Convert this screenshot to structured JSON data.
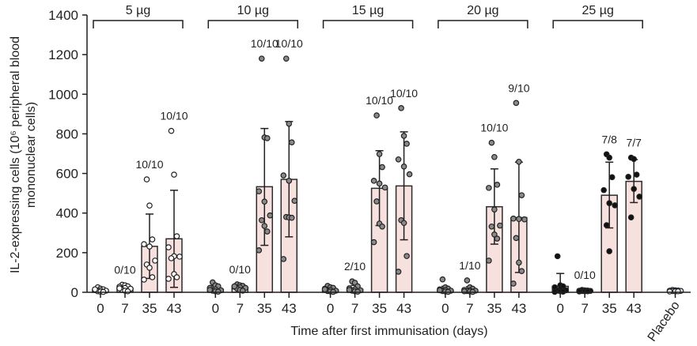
{
  "chart_data": {
    "type": "bar",
    "title": "",
    "xlabel": "Time after first immunisation (days)",
    "ylabel_line1": "IL-2-expressing cells (10⁶ peripheral blood",
    "ylabel_line2": "mononuclear cells)",
    "ylim": [
      0,
      1400
    ],
    "yticks": [
      "0",
      "200",
      "400",
      "600",
      "800",
      "1000",
      "1200",
      "1400"
    ],
    "grid": false,
    "colors": {
      "bar_fill": "#f7e1df",
      "bar_stroke": "#2b2b2b",
      "axis": "#231f20"
    },
    "groups": [
      {
        "label": "5 µg",
        "marker_fill": "#ffffff",
        "timepoints": [
          {
            "day": "0",
            "mean": 10,
            "sd_low": 0,
            "sd_high": 20,
            "responders": "",
            "points": [
              25,
              18,
              15,
              12,
              10,
              8,
              5,
              3,
              2,
              15
            ]
          },
          {
            "day": "7",
            "mean": 20,
            "sd_low": 5,
            "sd_high": 35,
            "responders": "0/10",
            "points": [
              38,
              35,
              30,
              28,
              22,
              18,
              12,
              8,
              5,
              20
            ]
          },
          {
            "day": "35",
            "mean": 232,
            "sd_low": 70,
            "sd_high": 395,
            "responders": "10/10",
            "points": [
              570,
              438,
              267,
              243,
              231,
              160,
              140,
              124,
              76,
              64
            ]
          },
          {
            "day": "43",
            "mean": 270,
            "sd_low": 25,
            "sd_high": 515,
            "responders": "10/10",
            "points": [
              815,
              594,
              283,
              227,
              182,
              180,
              172,
              92,
              76,
              68
            ]
          }
        ]
      },
      {
        "label": "10 µg",
        "marker_fill": "#8a8a8a",
        "timepoints": [
          {
            "day": "0",
            "mean": 15,
            "sd_low": 0,
            "sd_high": 35,
            "responders": "",
            "points": [
              50,
              35,
              30,
              22,
              15,
              10,
              8,
              5,
              3,
              12
            ]
          },
          {
            "day": "7",
            "mean": 25,
            "sd_low": 10,
            "sd_high": 38,
            "responders": "0/10",
            "points": [
              40,
              35,
              32,
              28,
              25,
              22,
              18,
              12,
              8,
              30
            ]
          },
          {
            "day": "35",
            "mean": 533,
            "sd_low": 237,
            "sd_high": 827,
            "responders": "10/10",
            "points": [
              1180,
              782,
              778,
              510,
              458,
              388,
              364,
              335,
              307,
              212
            ]
          },
          {
            "day": "43",
            "mean": 570,
            "sd_low": 280,
            "sd_high": 862,
            "responders": "10/10",
            "points": [
              1180,
              851,
              757,
              590,
              563,
              462,
              380,
              378,
              376,
              168
            ]
          }
        ]
      },
      {
        "label": "15 µg",
        "marker_fill": "#8a8a8a",
        "timepoints": [
          {
            "day": "0",
            "mean": 10,
            "sd_low": 0,
            "sd_high": 22,
            "responders": "",
            "points": [
              32,
              25,
              22,
              18,
              12,
              8,
              6,
              4,
              2,
              15
            ]
          },
          {
            "day": "7",
            "mean": 15,
            "sd_low": 0,
            "sd_high": 35,
            "responders": "2/10",
            "points": [
              55,
              48,
              30,
              20,
              15,
              10,
              8,
              5,
              3,
              12
            ]
          },
          {
            "day": "35",
            "mean": 525,
            "sd_low": 337,
            "sd_high": 715,
            "responders": "10/10",
            "points": [
              893,
              698,
              632,
              563,
              549,
              529,
              459,
              347,
              332,
              253
            ]
          },
          {
            "day": "43",
            "mean": 537,
            "sd_low": 265,
            "sd_high": 810,
            "responders": "10/10",
            "points": [
              930,
              790,
              750,
              671,
              635,
              596,
              364,
              350,
              183,
              104
            ]
          }
        ]
      },
      {
        "label": "20 µg",
        "marker_fill": "#8a8a8a",
        "timepoints": [
          {
            "day": "0",
            "mean": 10,
            "sd_low": 0,
            "sd_high": 30,
            "responders": "",
            "points": [
              65,
              25,
              18,
              15,
              12,
              8,
              6,
              4,
              2,
              10
            ]
          },
          {
            "day": "7",
            "mean": 10,
            "sd_low": 0,
            "sd_high": 28,
            "responders": "1/10",
            "points": [
              60,
              25,
              18,
              12,
              10,
              8,
              6,
              4,
              2,
              5
            ]
          },
          {
            "day": "35",
            "mean": 432,
            "sd_low": 243,
            "sd_high": 623,
            "responders": "10/10",
            "points": [
              755,
              683,
              543,
              527,
              418,
              337,
              332,
              292,
              271,
              160
            ]
          },
          {
            "day": "43",
            "mean": 377,
            "sd_low": 100,
            "sd_high": 657,
            "responders": "9/10",
            "points": [
              956,
              659,
              490,
              372,
              370,
              368,
              274,
              150,
              107,
              44
            ]
          }
        ]
      },
      {
        "label": "25 µg",
        "marker_fill": "#111111",
        "timepoints": [
          {
            "day": "0",
            "mean": 30,
            "sd_low": 0,
            "sd_high": 95,
            "responders": "",
            "points": [
              182,
              35,
              30,
              25,
              15,
              10,
              8,
              5,
              3,
              2
            ]
          },
          {
            "day": "7",
            "mean": 8,
            "sd_low": 3,
            "sd_high": 12,
            "responders": "0/10",
            "points": [
              12,
              10,
              9,
              8,
              8,
              7,
              6,
              5,
              5,
              4
            ]
          },
          {
            "day": "35",
            "mean": 490,
            "sd_low": 325,
            "sd_high": 657,
            "responders": "7/8",
            "points": [
              697,
              680,
              581,
              516,
              450,
              439,
              339,
              207
            ]
          },
          {
            "day": "43",
            "mean": 560,
            "sd_low": 453,
            "sd_high": 670,
            "responders": "7/7",
            "points": [
              680,
              673,
              594,
              583,
              522,
              483,
              378
            ]
          }
        ]
      }
    ],
    "placebo": {
      "label": "Placebo",
      "marker_fill": "#dde6ee",
      "mean": 8,
      "points": [
        12,
        10,
        9,
        8,
        8,
        7,
        6,
        5,
        5,
        4
      ]
    }
  }
}
